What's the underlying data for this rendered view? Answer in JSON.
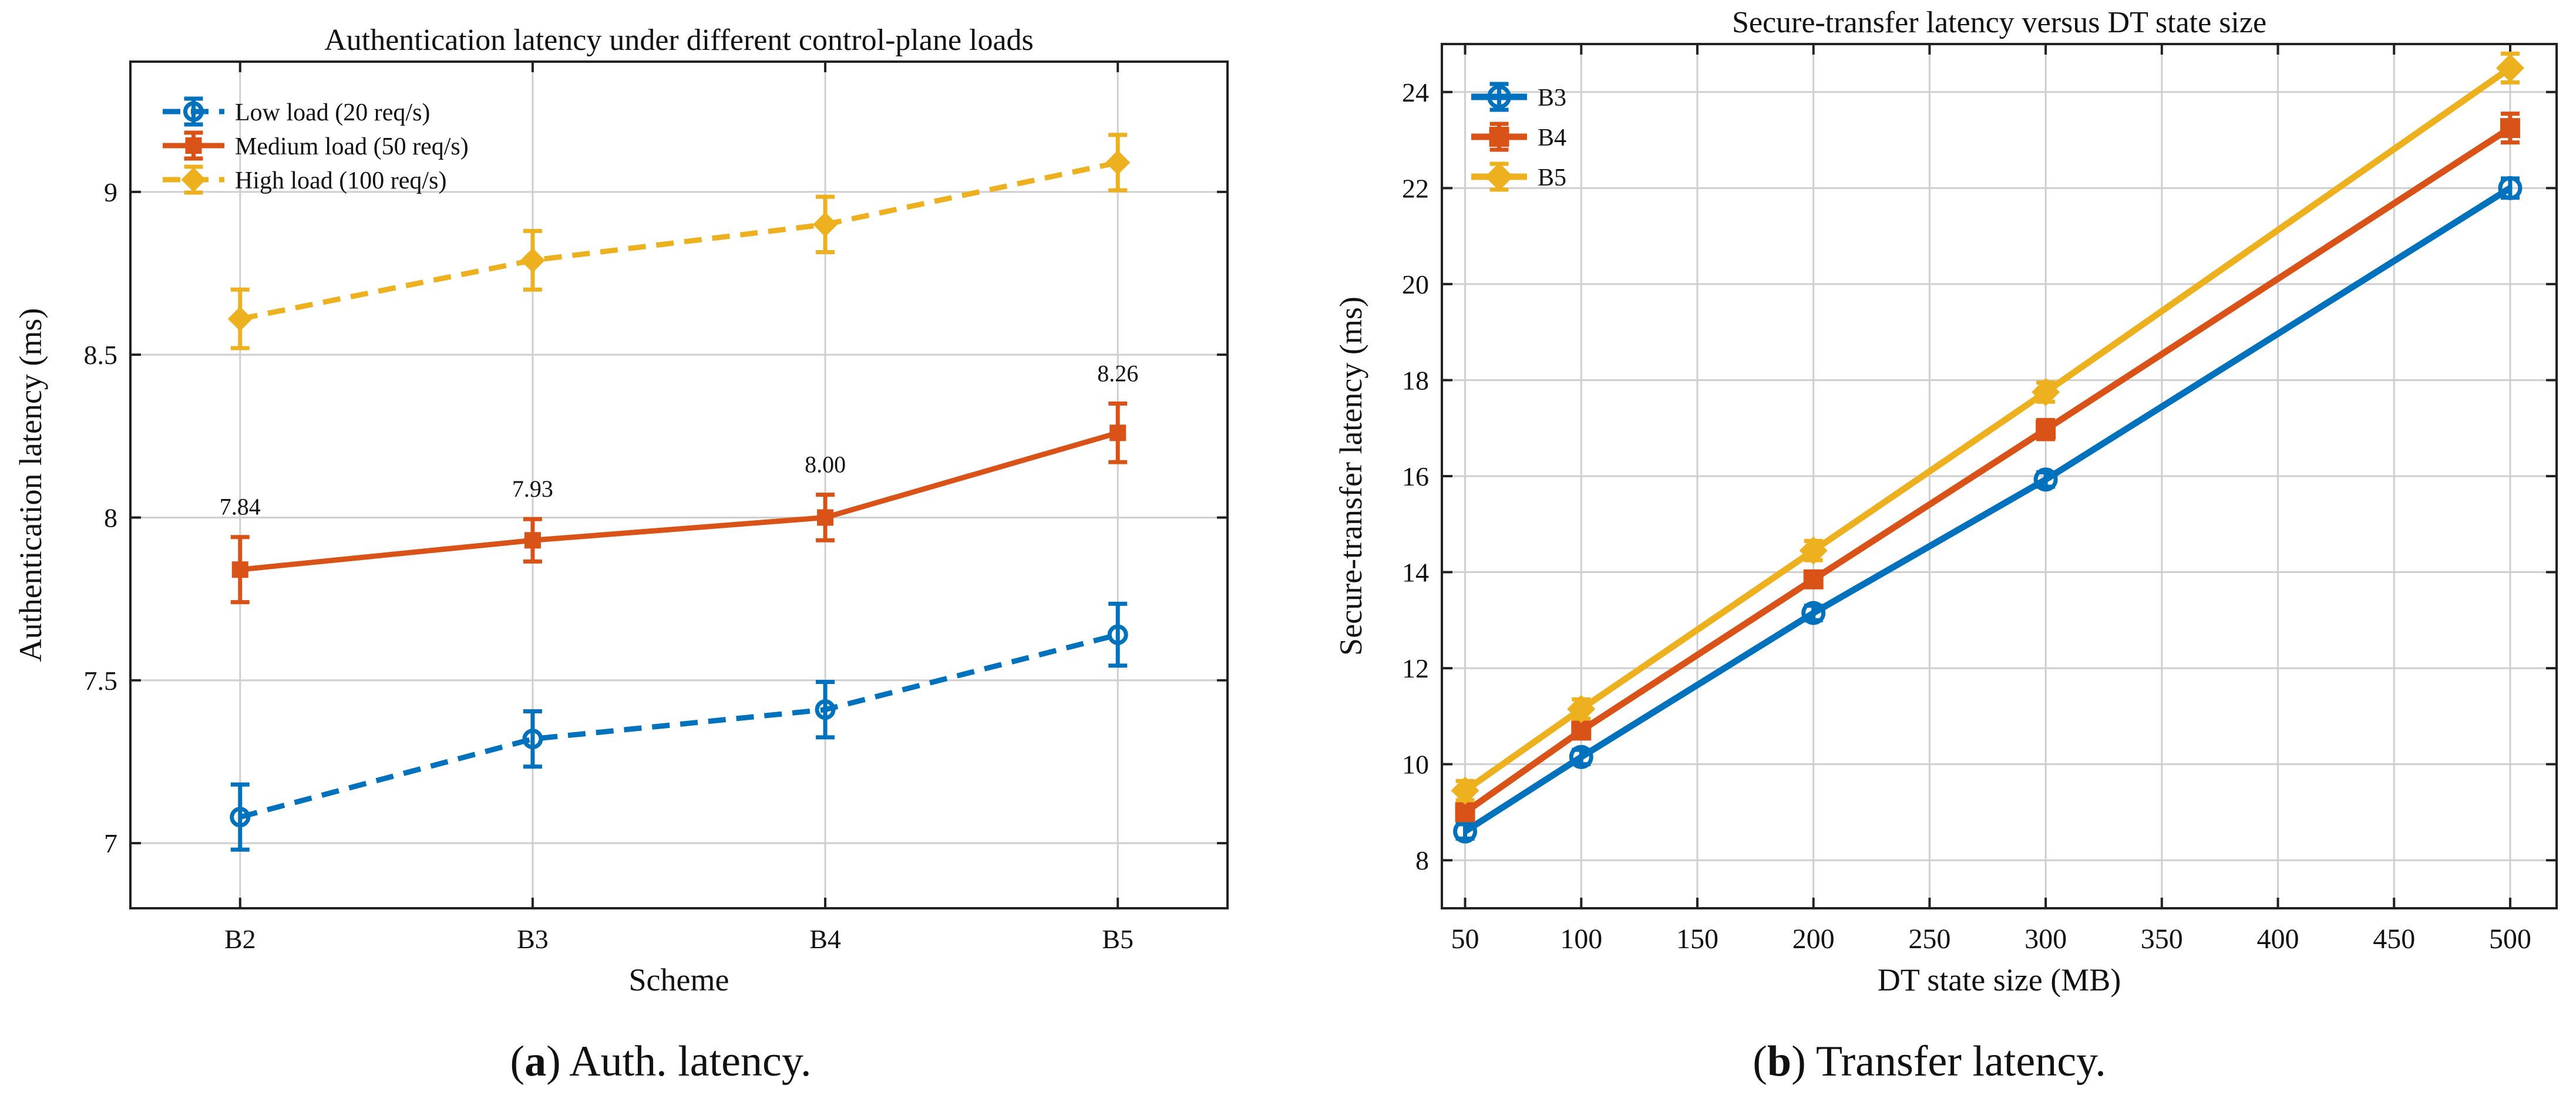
{
  "colors": {
    "blue": "#0072BD",
    "orange": "#D95319",
    "yellow": "#EDB120",
    "grid": "#cfcfcf",
    "axis": "#222222"
  },
  "figure": {
    "captions": [
      {
        "letter": "a",
        "open": "(",
        "close": ")",
        "text": " Auth. latency."
      },
      {
        "letter": "b",
        "open": "(",
        "close": ")",
        "text": " Transfer latency."
      }
    ]
  },
  "chart_data": [
    {
      "type": "line",
      "title": "Authentication latency under different control-plane loads",
      "xlabel": "Scheme",
      "ylabel": "Authentication latency (ms)",
      "categories": [
        "B2",
        "B3",
        "B4",
        "B5"
      ],
      "ylim": [
        6.8,
        9.4
      ],
      "yticks": [
        7,
        7.5,
        8,
        8.5,
        9
      ],
      "ytick_labels": [
        "7",
        "7.5",
        "8",
        "8.5",
        "9"
      ],
      "grid": true,
      "legend_position": "top-left",
      "series": [
        {
          "name": "Low load (20 req/s)",
          "color": "#0072BD",
          "dash": true,
          "marker": "circle",
          "values": [
            7.08,
            7.32,
            7.41,
            7.64
          ],
          "errors": [
            0.1,
            0.085,
            0.085,
            0.095
          ]
        },
        {
          "name": "Medium load (50 req/s)",
          "color": "#D95319",
          "dash": false,
          "marker": "square",
          "values": [
            7.84,
            7.93,
            8.0,
            8.26
          ],
          "errors": [
            0.1,
            0.065,
            0.07,
            0.09
          ],
          "labels": [
            "7.84",
            "7.93",
            "8.00",
            "8.26"
          ]
        },
        {
          "name": "High load (100 req/s)",
          "color": "#EDB120",
          "dash": true,
          "marker": "diamond",
          "values": [
            8.61,
            8.79,
            8.9,
            9.09
          ],
          "errors": [
            0.09,
            0.09,
            0.085,
            0.085
          ]
        }
      ]
    },
    {
      "type": "line",
      "title": "Secure-transfer latency versus DT state size",
      "xlabel": "DT state size (MB)",
      "ylabel": "Secure-transfer latency (ms)",
      "x": [
        50,
        100,
        200,
        300,
        500
      ],
      "xlim": [
        40,
        520
      ],
      "xticks": [
        50,
        100,
        150,
        200,
        250,
        300,
        350,
        400,
        450,
        500
      ],
      "ylim": [
        7,
        25
      ],
      "yticks": [
        8,
        10,
        12,
        14,
        16,
        18,
        20,
        22,
        24
      ],
      "grid": true,
      "legend_position": "top-left",
      "series": [
        {
          "name": "B3",
          "color": "#0072BD",
          "marker": "circle",
          "values": [
            8.6,
            10.15,
            13.15,
            15.93,
            22.0
          ],
          "errors": [
            0.15,
            0.15,
            0.15,
            0.15,
            0.2
          ]
        },
        {
          "name": "B4",
          "color": "#D95319",
          "marker": "square",
          "values": [
            9.0,
            10.7,
            13.85,
            16.97,
            23.25
          ],
          "errors": [
            0.15,
            0.15,
            0.15,
            0.2,
            0.3
          ]
        },
        {
          "name": "B5",
          "color": "#EDB120",
          "marker": "diamond",
          "values": [
            9.45,
            11.15,
            14.45,
            17.75,
            24.5
          ],
          "errors": [
            0.2,
            0.2,
            0.2,
            0.2,
            0.3
          ]
        }
      ]
    }
  ]
}
